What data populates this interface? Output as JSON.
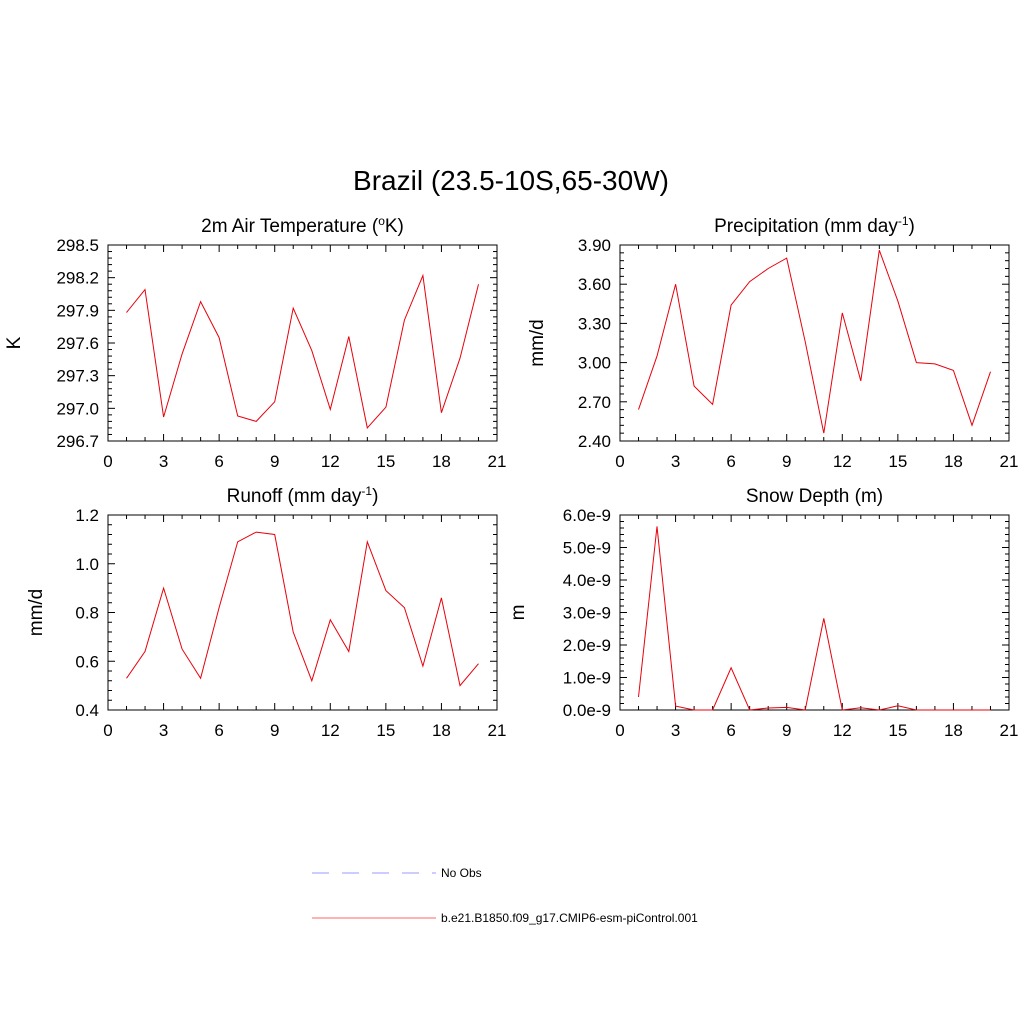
{
  "figure": {
    "title": "Brazil (23.5-10S,65-30W)"
  },
  "legend": [
    {
      "label": "No Obs",
      "color": "#9999ff",
      "dash": true
    },
    {
      "label": "b.e21.B1850.f09_g17.CMIP6-esm-piControl.001",
      "color": "#ff6666",
      "dash": false
    }
  ],
  "chart_data": [
    {
      "type": "line",
      "title": "2m Air Temperature (",
      "title_sup": "o",
      "title_after": "K)",
      "ylabel": "K",
      "xlim": [
        0,
        21
      ],
      "ylim": [
        296.7,
        298.5
      ],
      "xticks": [
        0,
        3,
        6,
        9,
        12,
        15,
        18,
        21
      ],
      "xtick_labels": [
        "0",
        "3",
        "6",
        "9",
        "12",
        "15",
        "18",
        "21"
      ],
      "yticks": [
        296.7,
        297.0,
        297.3,
        297.6,
        297.9,
        298.2,
        298.5
      ],
      "ytick_labels": [
        "296.7",
        "297.0",
        "297.3",
        "297.6",
        "297.9",
        "298.2",
        "298.5"
      ],
      "series": [
        {
          "color": "#e8000b",
          "x": [
            1,
            2,
            3,
            4,
            5,
            6,
            7,
            8,
            9,
            10,
            11,
            12,
            13,
            14,
            15,
            16,
            17,
            18,
            19,
            20
          ],
          "values": [
            297.88,
            298.09,
            296.92,
            297.5,
            297.98,
            297.65,
            296.93,
            296.88,
            297.06,
            297.92,
            297.53,
            296.99,
            297.66,
            296.82,
            297.01,
            297.81,
            298.22,
            296.96,
            297.46,
            298.14
          ]
        }
      ]
    },
    {
      "type": "line",
      "title": "Precipitation (mm day",
      "title_sup": "-1",
      "title_after": ")",
      "ylabel": "mm/d",
      "xlim": [
        0,
        21
      ],
      "ylim": [
        2.4,
        3.9
      ],
      "xticks": [
        0,
        3,
        6,
        9,
        12,
        15,
        18,
        21
      ],
      "xtick_labels": [
        "0",
        "3",
        "6",
        "9",
        "12",
        "15",
        "18",
        "21"
      ],
      "yticks": [
        2.4,
        2.7,
        3.0,
        3.3,
        3.6,
        3.9
      ],
      "ytick_labels": [
        "2.40",
        "2.70",
        "3.00",
        "3.30",
        "3.60",
        "3.90"
      ],
      "series": [
        {
          "color": "#e8000b",
          "x": [
            1,
            2,
            3,
            4,
            5,
            6,
            7,
            8,
            9,
            10,
            11,
            12,
            13,
            14,
            15,
            16,
            17,
            18,
            19,
            20
          ],
          "values": [
            2.64,
            3.05,
            3.6,
            2.82,
            2.68,
            3.44,
            3.62,
            3.72,
            3.8,
            3.16,
            2.46,
            3.38,
            2.86,
            3.86,
            3.47,
            3.0,
            2.99,
            2.94,
            2.52,
            2.93
          ]
        }
      ]
    },
    {
      "type": "line",
      "title": "Runoff (mm day",
      "title_sup": "-1",
      "title_after": ")",
      "ylabel": "mm/d",
      "xlim": [
        0,
        21
      ],
      "ylim": [
        0.4,
        1.2
      ],
      "xticks": [
        0,
        3,
        6,
        9,
        12,
        15,
        18,
        21
      ],
      "xtick_labels": [
        "0",
        "3",
        "6",
        "9",
        "12",
        "15",
        "18",
        "21"
      ],
      "yticks": [
        0.4,
        0.6,
        0.8,
        1.0,
        1.2
      ],
      "ytick_labels": [
        "0.4",
        "0.6",
        "0.8",
        "1.0",
        "1.2"
      ],
      "series": [
        {
          "color": "#e8000b",
          "x": [
            1,
            2,
            3,
            4,
            5,
            6,
            7,
            8,
            9,
            10,
            11,
            12,
            13,
            14,
            15,
            16,
            17,
            18,
            19,
            20
          ],
          "values": [
            0.53,
            0.64,
            0.9,
            0.65,
            0.53,
            0.82,
            1.09,
            1.13,
            1.12,
            0.72,
            0.52,
            0.77,
            0.64,
            1.09,
            0.89,
            0.82,
            0.58,
            0.86,
            0.5,
            0.59
          ]
        }
      ]
    },
    {
      "type": "line",
      "title": "Snow Depth (m)",
      "title_sup": "",
      "title_after": "",
      "ylabel": "m",
      "xlim": [
        0,
        21
      ],
      "ylim": [
        0,
        6e-09
      ],
      "xticks": [
        0,
        3,
        6,
        9,
        12,
        15,
        18,
        21
      ],
      "xtick_labels": [
        "0",
        "3",
        "6",
        "9",
        "12",
        "15",
        "18",
        "21"
      ],
      "yticks": [
        0,
        1e-09,
        2e-09,
        3e-09,
        4e-09,
        5e-09,
        6e-09
      ],
      "ytick_labels": [
        "0.0e-9",
        "1.0e-9",
        "2.0e-9",
        "3.0e-9",
        "4.0e-9",
        "5.0e-9",
        "6.0e-9"
      ],
      "series": [
        {
          "color": "#e8000b",
          "x": [
            1,
            2,
            3,
            4,
            5,
            6,
            7,
            8,
            9,
            10,
            11,
            12,
            13,
            14,
            15,
            16,
            17,
            18,
            19,
            20
          ],
          "values": [
            4e-10,
            5.65e-09,
            1.2e-10,
            0.0,
            0.0,
            1.3e-09,
            0.0,
            6e-11,
            8e-11,
            0.0,
            2.82e-09,
            0.0,
            7e-11,
            0.0,
            1.3e-10,
            0.0,
            0.0,
            0.0,
            0.0,
            0.0
          ]
        }
      ]
    }
  ]
}
